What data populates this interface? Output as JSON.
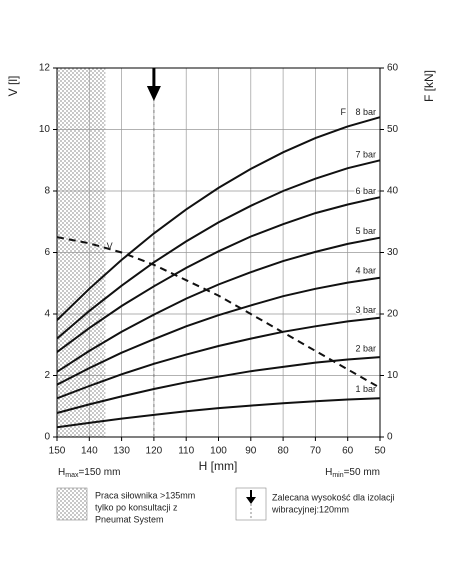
{
  "chart_data": {
    "type": "line",
    "xlabel": "H [mm]",
    "ylabel": "V [l]",
    "y2label": "F [kN]",
    "x": [
      150,
      140,
      130,
      120,
      110,
      100,
      90,
      80,
      70,
      60,
      50
    ],
    "xlim": [
      150,
      50
    ],
    "xticks": [
      150,
      140,
      130,
      120,
      110,
      100,
      90,
      80,
      70,
      60,
      50
    ],
    "ylim": [
      0,
      12
    ],
    "yticks": [
      0,
      2,
      4,
      6,
      8,
      10,
      12
    ],
    "y2lim": [
      0,
      60
    ],
    "y2ticks": [
      0,
      10,
      20,
      30,
      40,
      50,
      60
    ],
    "grid": true,
    "series": [
      {
        "name": "1 bar",
        "color": "#111111",
        "axis": "y2",
        "values": [
          1.6,
          2.3,
          3.0,
          3.6,
          4.2,
          4.7,
          5.1,
          5.5,
          5.8,
          6.1,
          6.3
        ]
      },
      {
        "name": "2 bar",
        "color": "#111111",
        "axis": "y2",
        "values": [
          3.9,
          5.3,
          6.6,
          7.8,
          8.9,
          9.8,
          10.7,
          11.4,
          12.1,
          12.6,
          13
        ]
      },
      {
        "name": "3 bar",
        "color": "#111111",
        "axis": "y2",
        "values": [
          6.3,
          8.3,
          10.2,
          11.9,
          13.4,
          14.8,
          16.0,
          17.1,
          18.0,
          18.8,
          19.4
        ]
      },
      {
        "name": "4 bar",
        "color": "#111111",
        "axis": "y2",
        "values": [
          8.5,
          11.2,
          13.7,
          15.9,
          18.0,
          19.8,
          21.4,
          22.9,
          24.1,
          25.1,
          25.9
        ]
      },
      {
        "name": "5 bar",
        "color": "#111111",
        "axis": "y2",
        "values": [
          10.6,
          14.0,
          17.1,
          19.9,
          22.5,
          24.8,
          26.8,
          28.6,
          30.1,
          31.4,
          32.4
        ]
      },
      {
        "name": "6 bar",
        "color": "#111111",
        "axis": "y2",
        "values": [
          13.8,
          17.7,
          21.3,
          24.5,
          27.5,
          30.2,
          32.6,
          34.6,
          36.4,
          37.8,
          39
        ]
      },
      {
        "name": "7 bar",
        "color": "#111111",
        "axis": "y2",
        "values": [
          16,
          20.5,
          24.6,
          28.4,
          31.8,
          34.9,
          37.6,
          40.0,
          42.0,
          43.7,
          45
        ]
      },
      {
        "name": "8 bar",
        "color": "#111111",
        "axis": "y2",
        "values": [
          19,
          24.1,
          28.8,
          33.1,
          37.0,
          40.5,
          43.6,
          46.3,
          48.6,
          50.5,
          52
        ]
      },
      {
        "name": "V",
        "color": "#111111",
        "dashed": true,
        "values": [
          6.5,
          6.3,
          6.0,
          5.6,
          5.1,
          4.6,
          4.0,
          3.4,
          2.8,
          2.2,
          1.6
        ]
      }
    ],
    "force_label": "F",
    "restricted_xlim": [
      150,
      135
    ],
    "recommended_x": 120,
    "hmax": {
      "symbol": "H",
      "sub": "max",
      "rest": "=150 mm"
    },
    "hmin": {
      "symbol": "H",
      "sub": "min",
      "rest": "=50 mm"
    },
    "legend": {
      "restricted": [
        "Praca siłownika >135mm",
        "tylko po konsultacji z",
        "Pneumat System"
      ],
      "recommended": [
        "Zalecana wysokość dla izolacji",
        "wibracyjnej:120mm"
      ]
    }
  }
}
